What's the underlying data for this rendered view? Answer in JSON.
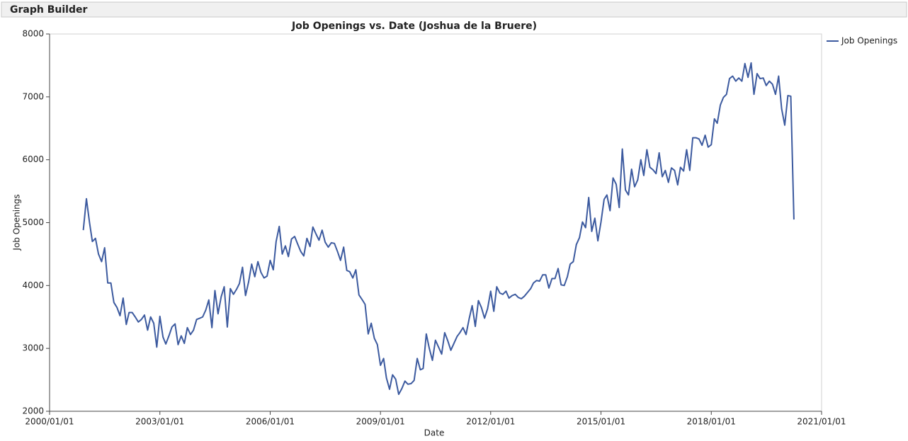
{
  "header": {
    "title": "Graph Builder"
  },
  "chart_data": {
    "type": "line",
    "title": "Job Openings vs. Date (Joshua de la Bruere)",
    "x_label": "Date",
    "y_label": "Job Openings",
    "x": [
      "2000/12/01",
      "2001/01/01",
      "2001/02/01",
      "2001/03/01",
      "2001/04/01",
      "2001/05/01",
      "2001/06/01",
      "2001/07/01",
      "2001/08/01",
      "2001/09/01",
      "2001/10/01",
      "2001/11/01",
      "2001/12/01",
      "2002/01/01",
      "2002/02/01",
      "2002/03/01",
      "2002/04/01",
      "2002/05/01",
      "2002/06/01",
      "2002/07/01",
      "2002/08/01",
      "2002/09/01",
      "2002/10/01",
      "2002/11/01",
      "2002/12/01",
      "2003/01/01",
      "2003/02/01",
      "2003/03/01",
      "2003/04/01",
      "2003/05/01",
      "2003/06/01",
      "2003/07/01",
      "2003/08/01",
      "2003/09/01",
      "2003/10/01",
      "2003/11/01",
      "2003/12/01",
      "2004/01/01",
      "2004/02/01",
      "2004/03/01",
      "2004/04/01",
      "2004/05/01",
      "2004/06/01",
      "2004/07/01",
      "2004/08/01",
      "2004/09/01",
      "2004/10/01",
      "2004/11/01",
      "2004/12/01",
      "2005/01/01",
      "2005/02/01",
      "2005/03/01",
      "2005/04/01",
      "2005/05/01",
      "2005/06/01",
      "2005/07/01",
      "2005/08/01",
      "2005/09/01",
      "2005/10/01",
      "2005/11/01",
      "2005/12/01",
      "2006/01/01",
      "2006/02/01",
      "2006/03/01",
      "2006/04/01",
      "2006/05/01",
      "2006/06/01",
      "2006/07/01",
      "2006/08/01",
      "2006/09/01",
      "2006/10/01",
      "2006/11/01",
      "2006/12/01",
      "2007/01/01",
      "2007/02/01",
      "2007/03/01",
      "2007/04/01",
      "2007/05/01",
      "2007/06/01",
      "2007/07/01",
      "2007/08/01",
      "2007/09/01",
      "2007/10/01",
      "2007/11/01",
      "2007/12/01",
      "2008/01/01",
      "2008/02/01",
      "2008/03/01",
      "2008/04/01",
      "2008/05/01",
      "2008/06/01",
      "2008/07/01",
      "2008/08/01",
      "2008/09/01",
      "2008/10/01",
      "2008/11/01",
      "2008/12/01",
      "2009/01/01",
      "2009/02/01",
      "2009/03/01",
      "2009/04/01",
      "2009/05/01",
      "2009/06/01",
      "2009/07/01",
      "2009/08/01",
      "2009/09/01",
      "2009/10/01",
      "2009/11/01",
      "2009/12/01",
      "2010/01/01",
      "2010/02/01",
      "2010/03/01",
      "2010/04/01",
      "2010/05/01",
      "2010/06/01",
      "2010/07/01",
      "2010/08/01",
      "2010/09/01",
      "2010/10/01",
      "2010/11/01",
      "2010/12/01",
      "2011/01/01",
      "2011/02/01",
      "2011/03/01",
      "2011/04/01",
      "2011/05/01",
      "2011/06/01",
      "2011/07/01",
      "2011/08/01",
      "2011/09/01",
      "2011/10/01",
      "2011/11/01",
      "2011/12/01",
      "2012/01/01",
      "2012/02/01",
      "2012/03/01",
      "2012/04/01",
      "2012/05/01",
      "2012/06/01",
      "2012/07/01",
      "2012/08/01",
      "2012/09/01",
      "2012/10/01",
      "2012/11/01",
      "2012/12/01",
      "2013/01/01",
      "2013/02/01",
      "2013/03/01",
      "2013/04/01",
      "2013/05/01",
      "2013/06/01",
      "2013/07/01",
      "2013/08/01",
      "2013/09/01",
      "2013/10/01",
      "2013/11/01",
      "2013/12/01",
      "2014/01/01",
      "2014/02/01",
      "2014/03/01",
      "2014/04/01",
      "2014/05/01",
      "2014/06/01",
      "2014/07/01",
      "2014/08/01",
      "2014/09/01",
      "2014/10/01",
      "2014/11/01",
      "2014/12/01",
      "2015/01/01",
      "2015/02/01",
      "2015/03/01",
      "2015/04/01",
      "2015/05/01",
      "2015/06/01",
      "2015/07/01",
      "2015/08/01",
      "2015/09/01",
      "2015/10/01",
      "2015/11/01",
      "2015/12/01",
      "2016/01/01",
      "2016/02/01",
      "2016/03/01",
      "2016/04/01",
      "2016/05/01",
      "2016/06/01",
      "2016/07/01",
      "2016/08/01",
      "2016/09/01",
      "2016/10/01",
      "2016/11/01",
      "2016/12/01",
      "2017/01/01",
      "2017/02/01",
      "2017/03/01",
      "2017/04/01",
      "2017/05/01",
      "2017/06/01",
      "2017/07/01",
      "2017/08/01",
      "2017/09/01",
      "2017/10/01",
      "2017/11/01",
      "2017/12/01",
      "2018/01/01",
      "2018/02/01",
      "2018/03/01",
      "2018/04/01",
      "2018/05/01",
      "2018/06/01",
      "2018/07/01",
      "2018/08/01",
      "2018/09/01",
      "2018/10/01",
      "2018/11/01",
      "2018/12/01",
      "2019/01/01",
      "2019/02/01",
      "2019/03/01",
      "2019/04/01",
      "2019/05/01",
      "2019/06/01",
      "2019/07/01",
      "2019/08/01",
      "2019/09/01",
      "2019/10/01",
      "2019/11/01",
      "2019/12/01",
      "2020/01/01",
      "2020/02/01",
      "2020/03/01",
      "2020/04/01"
    ],
    "series": [
      {
        "name": "Job Openings",
        "color": "#3c5a9f",
        "values": [
          4880,
          5380,
          5000,
          4700,
          4750,
          4500,
          4380,
          4600,
          4040,
          4040,
          3730,
          3650,
          3520,
          3800,
          3380,
          3570,
          3570,
          3500,
          3420,
          3460,
          3530,
          3290,
          3500,
          3400,
          3020,
          3510,
          3180,
          3070,
          3200,
          3340,
          3390,
          3060,
          3200,
          3080,
          3330,
          3220,
          3290,
          3460,
          3480,
          3500,
          3610,
          3770,
          3330,
          3920,
          3550,
          3820,
          3980,
          3340,
          3950,
          3860,
          3940,
          4030,
          4290,
          3840,
          4060,
          4340,
          4140,
          4380,
          4210,
          4120,
          4150,
          4400,
          4250,
          4700,
          4940,
          4500,
          4630,
          4460,
          4740,
          4780,
          4660,
          4540,
          4470,
          4750,
          4620,
          4930,
          4820,
          4720,
          4880,
          4690,
          4610,
          4680,
          4670,
          4540,
          4400,
          4610,
          4240,
          4220,
          4120,
          4250,
          3850,
          3780,
          3700,
          3230,
          3400,
          3160,
          3060,
          2730,
          2840,
          2530,
          2350,
          2580,
          2510,
          2270,
          2360,
          2480,
          2430,
          2440,
          2490,
          2840,
          2660,
          2680,
          3230,
          3000,
          2810,
          3130,
          3020,
          2910,
          3250,
          3120,
          2970,
          3080,
          3190,
          3250,
          3330,
          3220,
          3470,
          3680,
          3350,
          3760,
          3650,
          3480,
          3630,
          3910,
          3590,
          3980,
          3880,
          3860,
          3910,
          3800,
          3840,
          3860,
          3810,
          3790,
          3830,
          3890,
          3950,
          4040,
          4080,
          4070,
          4170,
          4170,
          3960,
          4110,
          4110,
          4270,
          4010,
          4000,
          4140,
          4340,
          4380,
          4650,
          4760,
          5010,
          4920,
          5400,
          4860,
          5070,
          4710,
          5010,
          5370,
          5440,
          5190,
          5710,
          5610,
          5240,
          6170,
          5520,
          5440,
          5850,
          5570,
          5680,
          6000,
          5750,
          6160,
          5880,
          5840,
          5780,
          6110,
          5730,
          5830,
          5640,
          5870,
          5830,
          5600,
          5880,
          5820,
          6160,
          5830,
          6350,
          6350,
          6330,
          6230,
          6390,
          6200,
          6240,
          6650,
          6580,
          6870,
          6990,
          7040,
          7290,
          7330,
          7250,
          7300,
          7250,
          7530,
          7310,
          7540,
          7040,
          7370,
          7290,
          7300,
          7180,
          7250,
          7200,
          7040,
          7330,
          6810,
          6550,
          7020,
          7010,
          5050
        ]
      }
    ],
    "xlim": [
      "2000/01/01",
      "2021/01/01"
    ],
    "xticks": [
      "2000/01/01",
      "2003/01/01",
      "2006/01/01",
      "2009/01/01",
      "2012/01/01",
      "2015/01/01",
      "2018/01/01",
      "2021/01/01"
    ],
    "ylim": [
      2000,
      8000
    ],
    "yticks": [
      2000,
      3000,
      4000,
      5000,
      6000,
      7000,
      8000
    ],
    "grid": false,
    "legend": "right"
  }
}
